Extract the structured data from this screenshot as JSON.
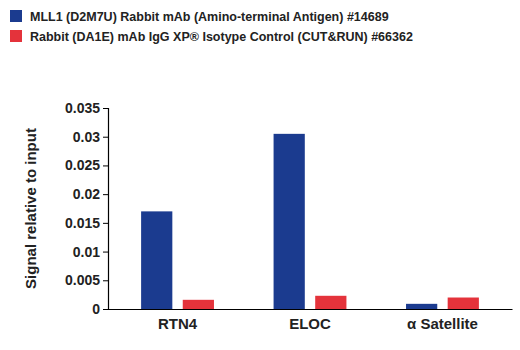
{
  "chart_data": {
    "type": "bar",
    "categories": [
      "RTN4",
      "ELOC",
      "α Satellite"
    ],
    "series": [
      {
        "name": "MLL1 (D2M7U) Rabbit mAb (Amino-terminal Antigen) #14689",
        "color": "#1b3b8f",
        "values": [
          0.017,
          0.0305,
          0.0009
        ]
      },
      {
        "name": "Rabbit (DA1E) mAb IgG XP® Isotype Control (CUT&RUN) #66362",
        "color": "#e4333b",
        "values": [
          0.0016,
          0.0023,
          0.002
        ]
      }
    ],
    "y_label": "Signal relative to input",
    "ylim": [
      0,
      0.035
    ],
    "yticks": [
      0,
      0.005,
      0.01,
      0.015,
      0.02,
      0.025,
      0.03,
      0.035
    ],
    "grid": false,
    "legend": "top"
  }
}
